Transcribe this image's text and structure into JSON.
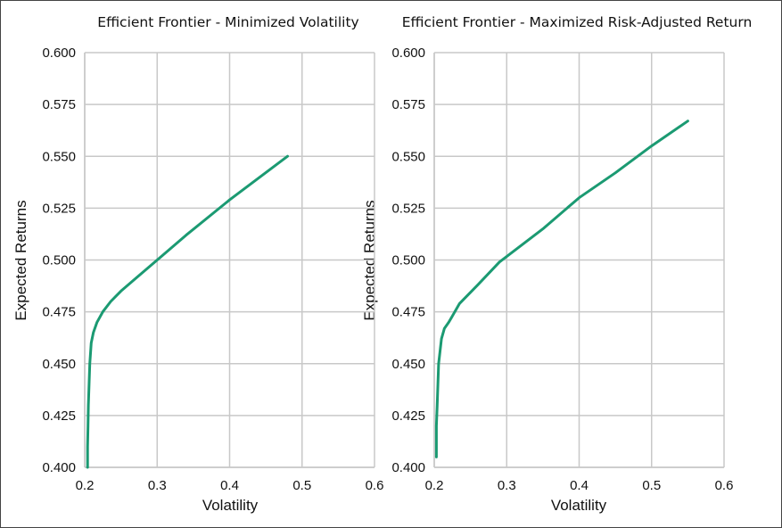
{
  "chart_data": [
    {
      "type": "line",
      "title": "Efficient Frontier - Minimized Volatility",
      "xlabel": "Volatility",
      "ylabel": "Expected Returns",
      "xlim": [
        0.2,
        0.6
      ],
      "ylim": [
        0.4,
        0.6
      ],
      "xticks": [
        "0.2",
        "0.3",
        "0.4",
        "0.5",
        "0.6"
      ],
      "yticks": [
        "0.400",
        "0.425",
        "0.450",
        "0.475",
        "0.500",
        "0.525",
        "0.550",
        "0.575",
        "0.600"
      ],
      "grid": true,
      "color": "#1b9a72",
      "series": [
        {
          "x": [
            0.204,
            0.204,
            0.2045,
            0.205,
            0.206,
            0.207,
            0.209,
            0.212,
            0.217,
            0.225,
            0.236,
            0.25,
            0.27,
            0.3,
            0.34,
            0.4,
            0.48
          ],
          "y": [
            0.4,
            0.41,
            0.42,
            0.43,
            0.44,
            0.45,
            0.46,
            0.465,
            0.47,
            0.475,
            0.48,
            0.485,
            0.491,
            0.5,
            0.512,
            0.529,
            0.55
          ]
        }
      ]
    },
    {
      "type": "line",
      "title": "Efficient Frontier - Maximized Risk-Adjusted Return",
      "xlabel": "Volatility",
      "ylabel": "Expected Returns",
      "xlim": [
        0.2,
        0.6
      ],
      "ylim": [
        0.4,
        0.6
      ],
      "xticks": [
        "0.2",
        "0.3",
        "0.4",
        "0.5",
        "0.6"
      ],
      "yticks": [
        "0.400",
        "0.425",
        "0.450",
        "0.475",
        "0.500",
        "0.525",
        "0.550",
        "0.575",
        "0.600"
      ],
      "grid": true,
      "color": "#1b9a72",
      "series": [
        {
          "x": [
            0.203,
            0.203,
            0.204,
            0.205,
            0.206,
            0.208,
            0.21,
            0.214,
            0.22,
            0.23,
            0.235,
            0.26,
            0.29,
            0.35,
            0.4,
            0.45,
            0.5,
            0.55
          ],
          "y": [
            0.405,
            0.42,
            0.43,
            0.44,
            0.45,
            0.456,
            0.462,
            0.467,
            0.47,
            0.476,
            0.479,
            0.488,
            0.499,
            0.515,
            0.53,
            0.542,
            0.555,
            0.567
          ]
        }
      ]
    }
  ]
}
